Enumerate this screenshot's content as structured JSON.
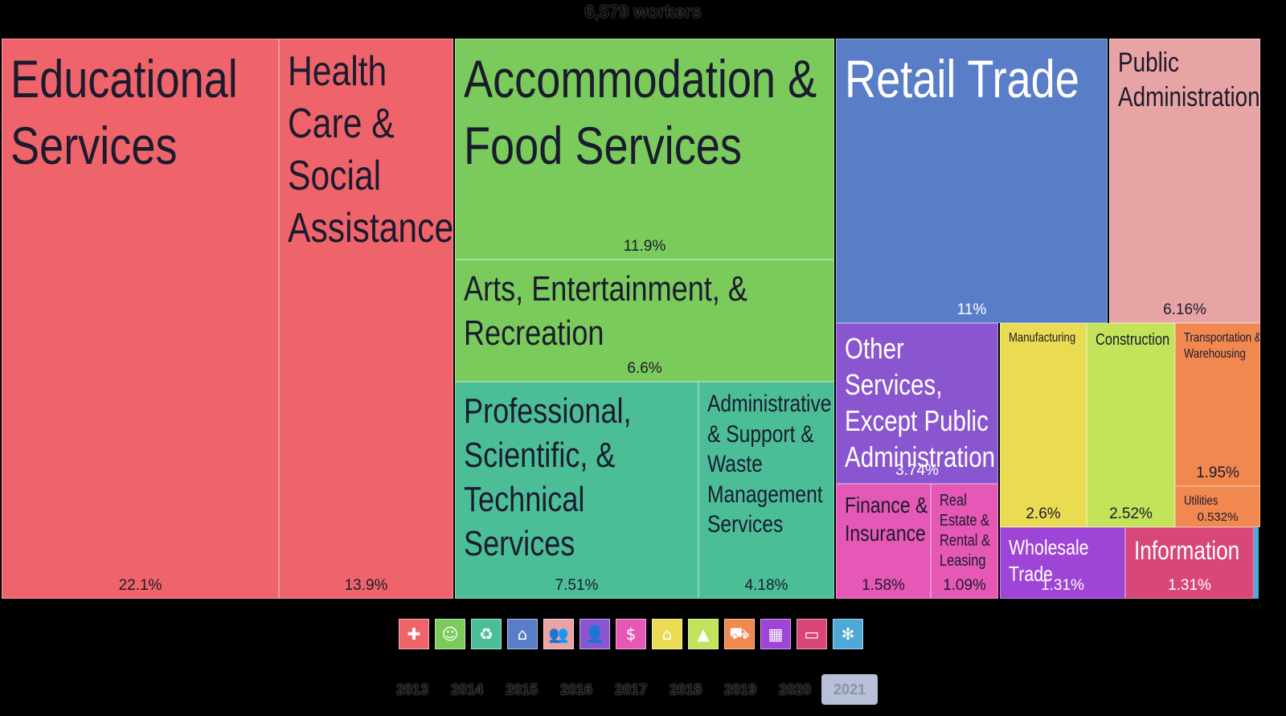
{
  "title": "6,579 workers",
  "chart_data": {
    "type": "treemap",
    "total_label": "6,579 workers",
    "items": [
      {
        "name": "Educational Services",
        "value": 22.1,
        "label": "22.1%",
        "color": "#ef646b",
        "icon": "health-cross-icon"
      },
      {
        "name": "Health Care & Social Assistance",
        "value": 13.9,
        "label": "13.9%",
        "color": "#ef646b",
        "icon": "health-cross-icon"
      },
      {
        "name": "Accommodation & Food Services",
        "value": 11.9,
        "label": "11.9%",
        "color": "#7aca5c",
        "icon": "theater-masks-icon"
      },
      {
        "name": "Arts, Entertainment, & Recreation",
        "value": 6.6,
        "label": "6.6%",
        "color": "#7aca5c",
        "icon": "theater-masks-icon"
      },
      {
        "name": "Professional, Scientific, & Technical Services",
        "value": 7.51,
        "label": "7.51%",
        "color": "#4bbe98",
        "icon": "recycle-icon"
      },
      {
        "name": "Administrative & Support & Waste Management Services",
        "value": 4.18,
        "label": "4.18%",
        "color": "#4bbe98",
        "icon": "recycle-icon"
      },
      {
        "name": "Retail Trade",
        "value": 11,
        "label": "11%",
        "color": "#5a7dc8",
        "icon": "storefront-icon"
      },
      {
        "name": "Public Administration",
        "value": 6.16,
        "label": "6.16%",
        "color": "#e8a4a4",
        "icon": "people-icon"
      },
      {
        "name": "Other Services, Except Public Administration",
        "value": 3.74,
        "label": "3.74%",
        "color": "#8a56d0",
        "icon": "person-icon"
      },
      {
        "name": "Finance & Insurance",
        "value": 1.58,
        "label": "1.58%",
        "color": "#e558b6",
        "icon": "money-house-icon"
      },
      {
        "name": "Real Estate & Rental & Leasing",
        "value": 1.09,
        "label": "1.09%",
        "color": "#e558b6",
        "icon": "money-house-icon"
      },
      {
        "name": "Manufacturing",
        "value": 2.6,
        "label": "2.6%",
        "color": "#eadc52",
        "icon": "factory-icon"
      },
      {
        "name": "Construction",
        "value": 2.52,
        "label": "2.52%",
        "color": "#c2e35a",
        "icon": "traffic-cone-icon"
      },
      {
        "name": "Transportation & Warehousing",
        "value": 1.95,
        "label": "1.95%",
        "color": "#f08850",
        "icon": "truck-icon"
      },
      {
        "name": "Utilities",
        "value": 0.532,
        "label": "0.532%",
        "color": "#f08850",
        "icon": "truck-icon"
      },
      {
        "name": "Wholesale Trade",
        "value": 1.31,
        "label": "1.31%",
        "color": "#9e44d6",
        "icon": "boxes-icon"
      },
      {
        "name": "Information",
        "value": 1.31,
        "label": "1.31%",
        "color": "#d8467a",
        "icon": "laptop-icon"
      }
    ]
  },
  "legend_icons": [
    {
      "name": "health-cross-icon",
      "glyph": "✚",
      "color": "#ef646b"
    },
    {
      "name": "theater-masks-icon",
      "glyph": "☺",
      "color": "#7aca5c"
    },
    {
      "name": "recycle-icon",
      "glyph": "♻",
      "color": "#4bbe98"
    },
    {
      "name": "storefront-icon",
      "glyph": "⌂",
      "color": "#5a7dc8"
    },
    {
      "name": "people-icon",
      "glyph": "👥",
      "color": "#e8a4a4"
    },
    {
      "name": "person-icon",
      "glyph": "👤",
      "color": "#8a56d0"
    },
    {
      "name": "money-house-icon",
      "glyph": "$",
      "color": "#e558b6"
    },
    {
      "name": "factory-icon",
      "glyph": "⌂",
      "color": "#eadc52"
    },
    {
      "name": "traffic-cone-icon",
      "glyph": "▲",
      "color": "#c2e35a"
    },
    {
      "name": "truck-icon",
      "glyph": "⛟",
      "color": "#f08850"
    },
    {
      "name": "boxes-icon",
      "glyph": "▦",
      "color": "#9e44d6"
    },
    {
      "name": "laptop-icon",
      "glyph": "▭",
      "color": "#d8467a"
    },
    {
      "name": "wheat-icon",
      "glyph": "✻",
      "color": "#4fa8d8"
    }
  ],
  "years": [
    "2013",
    "2014",
    "2015",
    "2016",
    "2017",
    "2018",
    "2019",
    "2020",
    "2021"
  ],
  "selected_year": "2021"
}
